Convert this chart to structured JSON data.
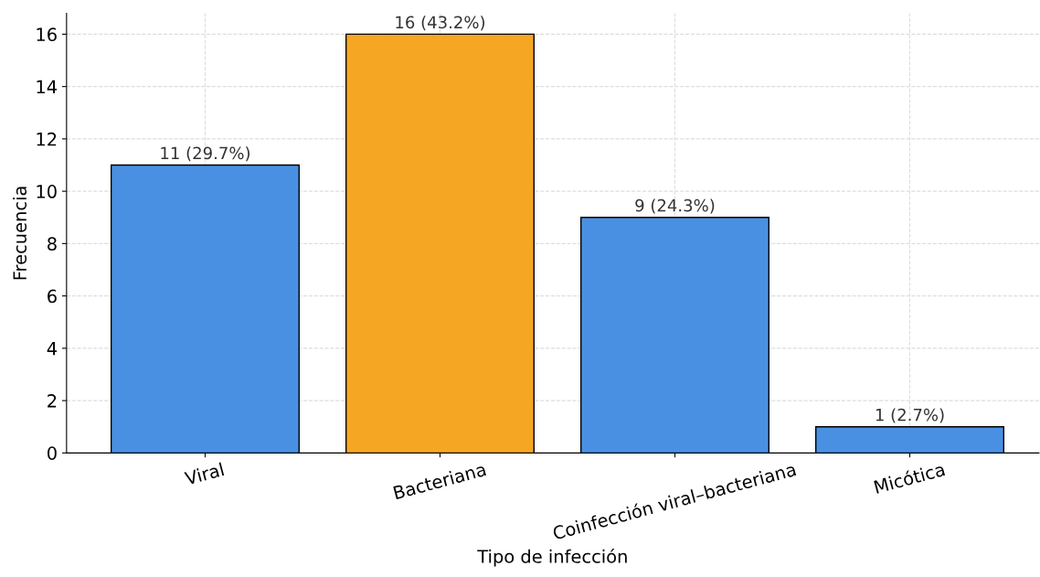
{
  "chart_data": {
    "type": "bar",
    "xlabel": "Tipo de infección",
    "ylabel": "Frecuencia",
    "categories": [
      "Viral",
      "Bacteriana",
      "Coinfección viral–bacteriana",
      "Micótica"
    ],
    "values": [
      11,
      16,
      9,
      1
    ],
    "colors": [
      "#4a90e2",
      "#f5a623",
      "#4a90e2",
      "#4a90e2"
    ],
    "value_labels": [
      "11 (29.7%)",
      "16 (43.2%)",
      "9 (24.3%)",
      "1 (2.7%)"
    ],
    "ylim": [
      0,
      16.8
    ],
    "yticks": [
      0,
      2,
      4,
      6,
      8,
      10,
      12,
      14,
      16
    ],
    "grid": true
  }
}
